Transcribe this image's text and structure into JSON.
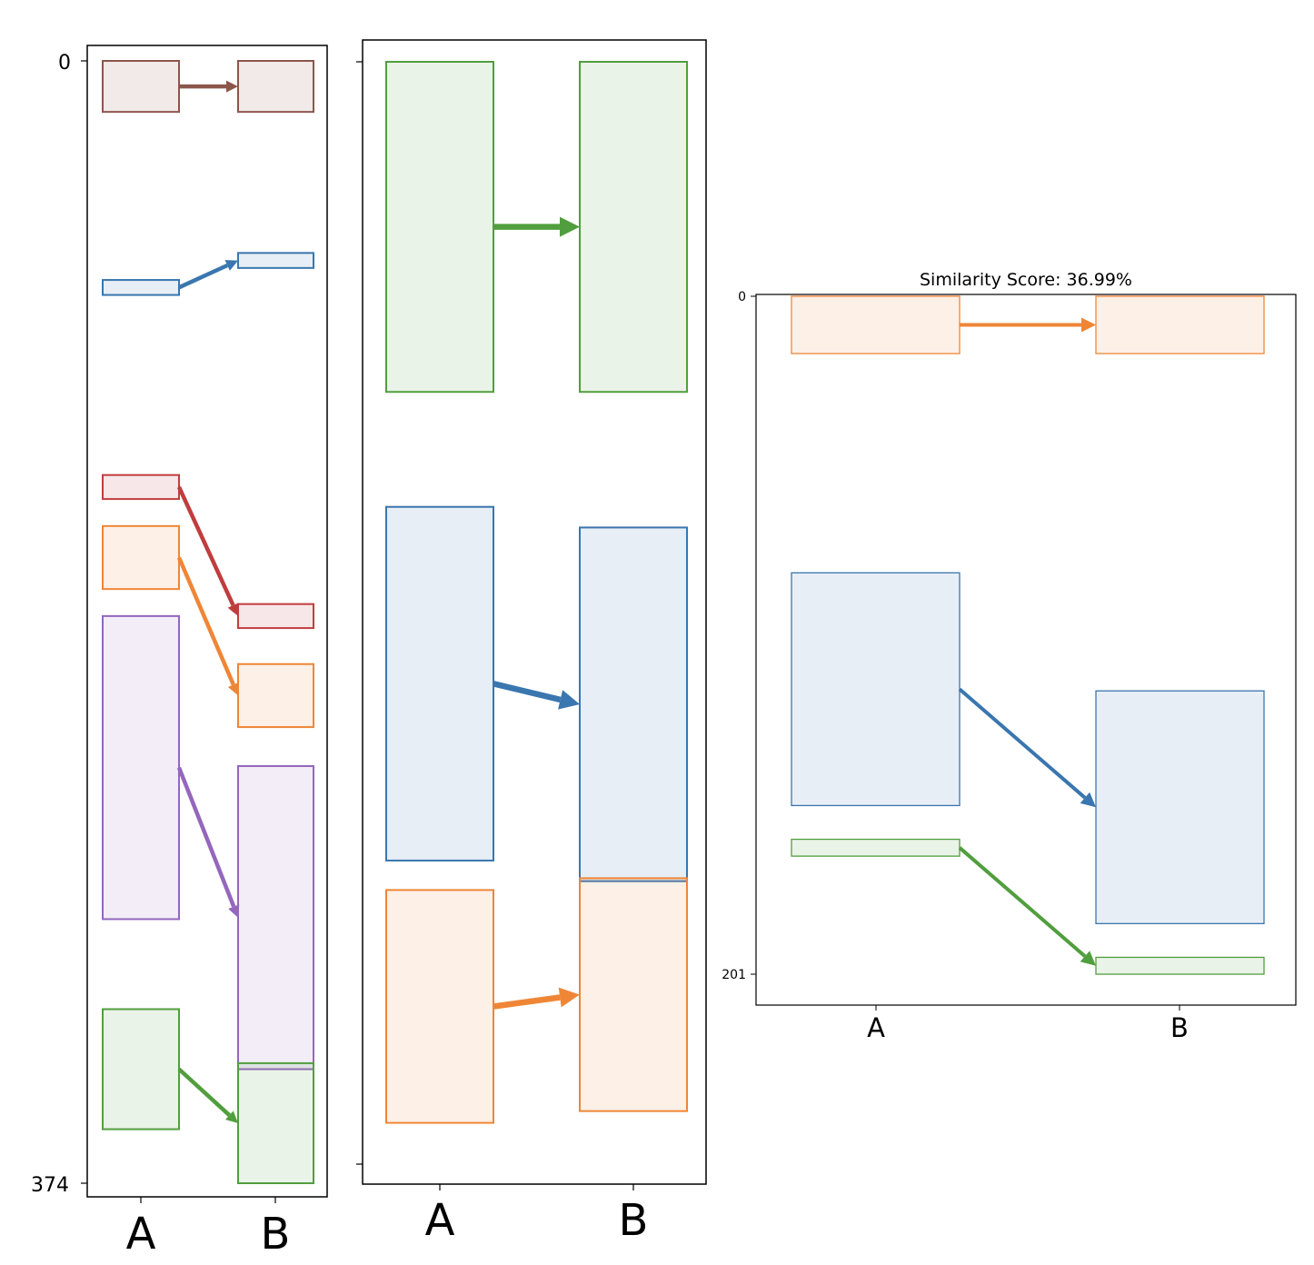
{
  "chart_data": [
    {
      "type": "alignment",
      "title": "",
      "categories": [
        "A",
        "B"
      ],
      "ytick_labels": [
        "0",
        "374"
      ],
      "ylim": [
        0,
        374
      ],
      "y_inverted": true,
      "colors": {
        "brown": "#8c564b",
        "blue": "#3a76af",
        "red": "#c03d3e",
        "orange": "#ef8636",
        "purple": "#9467bd",
        "green": "#519e3e"
      },
      "segments": [
        {
          "color": "#8c564b",
          "a": [
            0,
            17
          ],
          "b": [
            0,
            17
          ]
        },
        {
          "color": "#3a76af",
          "a": [
            73,
            78
          ],
          "b": [
            64,
            69
          ]
        },
        {
          "color": "#c03d3e",
          "a": [
            138,
            146
          ],
          "b": [
            181,
            189
          ]
        },
        {
          "color": "#ef8636",
          "a": [
            155,
            176
          ],
          "b": [
            201,
            222
          ]
        },
        {
          "color": "#9467bd",
          "a": [
            185,
            286
          ],
          "b": [
            235,
            336
          ]
        },
        {
          "color": "#519e3e",
          "a": [
            316,
            356
          ],
          "b": [
            334,
            374
          ]
        }
      ]
    },
    {
      "type": "alignment",
      "title": "",
      "categories": [
        "A",
        "B"
      ],
      "ytick_labels": [
        "",
        ""
      ],
      "ylim": [
        0,
        374
      ],
      "y_inverted": true,
      "colors": {
        "green": "#519e3e",
        "blue": "#3a76af",
        "orange": "#ef8636"
      },
      "segments": [
        {
          "color": "#519e3e",
          "a": [
            0,
            112
          ],
          "b": [
            0,
            112
          ]
        },
        {
          "color": "#3a76af",
          "a": [
            151,
            271
          ],
          "b": [
            158,
            278
          ]
        },
        {
          "color": "#ef8636",
          "a": [
            281,
            360
          ],
          "b": [
            277,
            356
          ]
        }
      ]
    },
    {
      "type": "alignment",
      "title": "Similarity Score: 36.99%",
      "categories": [
        "A",
        "B"
      ],
      "ytick_labels": [
        "0",
        "201"
      ],
      "ylim": [
        0,
        201
      ],
      "y_inverted": true,
      "colors": {
        "orange": "#ef8636",
        "blue": "#3a76af",
        "green": "#519e3e"
      },
      "segments": [
        {
          "color": "#ef8636",
          "a": [
            0,
            17
          ],
          "b": [
            0,
            17
          ]
        },
        {
          "color": "#3a76af",
          "a": [
            82,
            151
          ],
          "b": [
            117,
            186
          ]
        },
        {
          "color": "#519e3e",
          "a": [
            161,
            166
          ],
          "b": [
            196,
            201
          ]
        }
      ]
    }
  ]
}
